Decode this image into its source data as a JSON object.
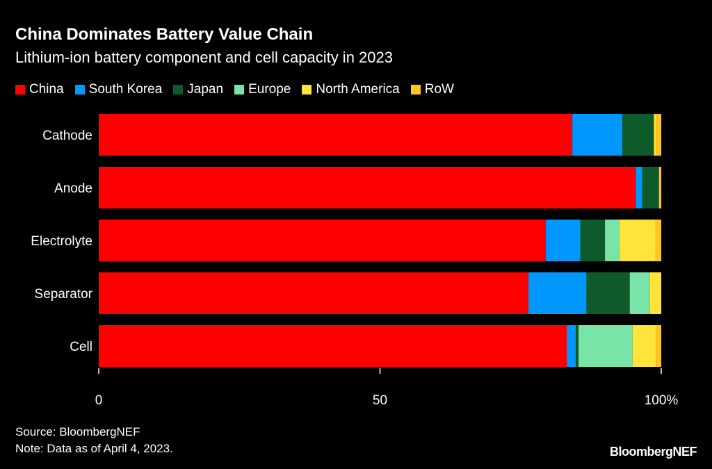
{
  "title": "China Dominates Battery Value Chain",
  "subtitle": "Lithium-ion battery component and cell capacity in 2023",
  "source": "Source: BloombergNEF",
  "note": "Note: Data as of April 4, 2023.",
  "logo": "BloombergNEF",
  "chart_data": {
    "type": "bar",
    "orientation": "horizontal-stacked",
    "categories": [
      "Cathode",
      "Anode",
      "Electrolyte",
      "Separator",
      "Cell"
    ],
    "series": [
      {
        "name": "China",
        "color": "#ff0000",
        "values": [
          84.2,
          95.5,
          79.5,
          76.4,
          83.2
        ]
      },
      {
        "name": "South Korea",
        "color": "#0098ff",
        "values": [
          8.9,
          1.1,
          6.1,
          10.3,
          1.6
        ]
      },
      {
        "name": "Japan",
        "color": "#0f5a2a",
        "values": [
          5.6,
          3.0,
          4.4,
          7.7,
          0.5
        ]
      },
      {
        "name": "Europe",
        "color": "#78e4a8",
        "values": [
          0,
          0,
          2.6,
          3.6,
          9.6
        ]
      },
      {
        "name": "North America",
        "color": "#ffe53a",
        "values": [
          0.4,
          0,
          6.4,
          2.0,
          4.2
        ]
      },
      {
        "name": "RoW",
        "color": "#ffc61e",
        "values": [
          0.9,
          0.4,
          1.0,
          0,
          0.9
        ]
      }
    ],
    "xticks": [
      {
        "value": 0,
        "label": "0"
      },
      {
        "value": 50,
        "label": "50"
      },
      {
        "value": 100,
        "label": "100%"
      }
    ],
    "xlim": [
      0,
      100
    ],
    "legend": "top-left"
  }
}
